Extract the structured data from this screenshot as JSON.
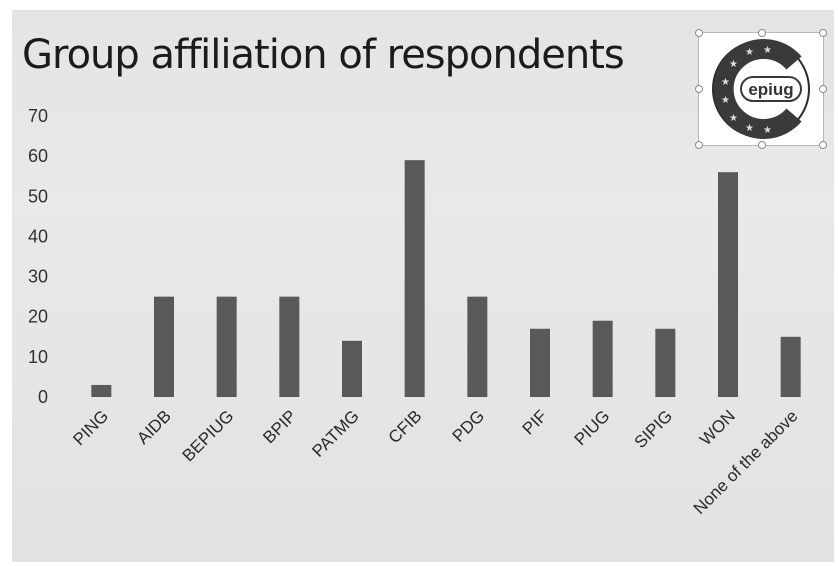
{
  "slide": {
    "title": "Group affiliation of respondents",
    "logo": {
      "wordmark": "epiug",
      "ring_text": "Confederacy of European Patent Information User Groups"
    }
  },
  "chart_data": {
    "type": "bar",
    "title": "Group affiliation of respondents",
    "xlabel": "",
    "ylabel": "",
    "categories": [
      "PING",
      "AIDB",
      "BEPIUG",
      "BPIP",
      "PATMG",
      "CFIB",
      "PDG",
      "PIF",
      "PIUG",
      "SIPIG",
      "WON",
      "None of the above"
    ],
    "values": [
      3,
      25,
      25,
      25,
      14,
      59,
      25,
      17,
      19,
      17,
      56,
      15
    ],
    "ylim": [
      0,
      70
    ],
    "yticks": [
      0,
      10,
      20,
      30,
      40,
      50,
      60,
      70
    ],
    "grid": false,
    "legend": "none",
    "bar_color": "#595959"
  }
}
